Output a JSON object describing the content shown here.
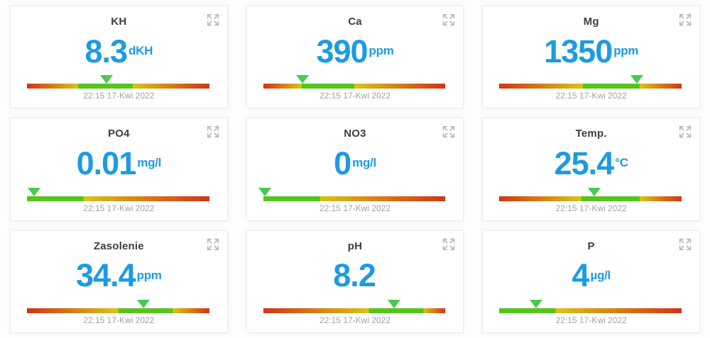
{
  "page": {
    "background": "#fdfdfd",
    "card_background": "#ffffff",
    "card_border": "#ececec"
  },
  "colors": {
    "accent_blue": "#1c9be4",
    "title_text": "#3d3d3d",
    "timestamp_text": "#a2a2a2",
    "bar_red": "#d23417",
    "bar_yellow": "#d9c414",
    "bar_green": "#56c41d",
    "marker_green": "#47ca50",
    "expand_icon": "#b9b9b9"
  },
  "icons": {
    "expand": "expand-arrows-icon"
  },
  "cards": [
    {
      "title": "KH",
      "value": "8.3",
      "unit": "dKH",
      "timestamp": "22:15 17-Kwi 2022",
      "green_start": 28,
      "green_end": 58,
      "marker_pct": 43.5
    },
    {
      "title": "Ca",
      "value": "390",
      "unit": "ppm",
      "timestamp": "22:15 17-Kwi 2022",
      "green_start": 21,
      "green_end": 50,
      "marker_pct": 21.5
    },
    {
      "title": "Mg",
      "value": "1350",
      "unit": "ppm",
      "timestamp": "22:15 17-Kwi 2022",
      "green_start": 46,
      "green_end": 77,
      "marker_pct": 75.5
    },
    {
      "title": "PO4",
      "value": "0.01",
      "unit": "mg/l",
      "timestamp": "22:15 17-Kwi 2022",
      "green_start": 0,
      "green_end": 31,
      "marker_pct": 4
    },
    {
      "title": "NO3",
      "value": "0",
      "unit": "mg/l",
      "timestamp": "22:15 17-Kwi 2022",
      "green_start": 0,
      "green_end": 31,
      "marker_pct": 1
    },
    {
      "title": "Temp.",
      "value": "25.4",
      "unit": "°C",
      "timestamp": "22:15 17-Kwi 2022",
      "green_start": 45,
      "green_end": 77,
      "marker_pct": 52
    },
    {
      "title": "Zasolenie",
      "value": "34.4",
      "unit": "ppm",
      "timestamp": "22:15 17-Kwi 2022",
      "green_start": 50,
      "green_end": 80,
      "marker_pct": 64
    },
    {
      "title": "pH",
      "value": "8.2",
      "unit": "",
      "timestamp": "22:15 17-Kwi 2022",
      "green_start": 58,
      "green_end": 88,
      "marker_pct": 72
    },
    {
      "title": "P",
      "value": "4",
      "unit": "µg/l",
      "timestamp": "22:15 17-Kwi 2022",
      "green_start": 0,
      "green_end": 31,
      "marker_pct": 20
    }
  ]
}
